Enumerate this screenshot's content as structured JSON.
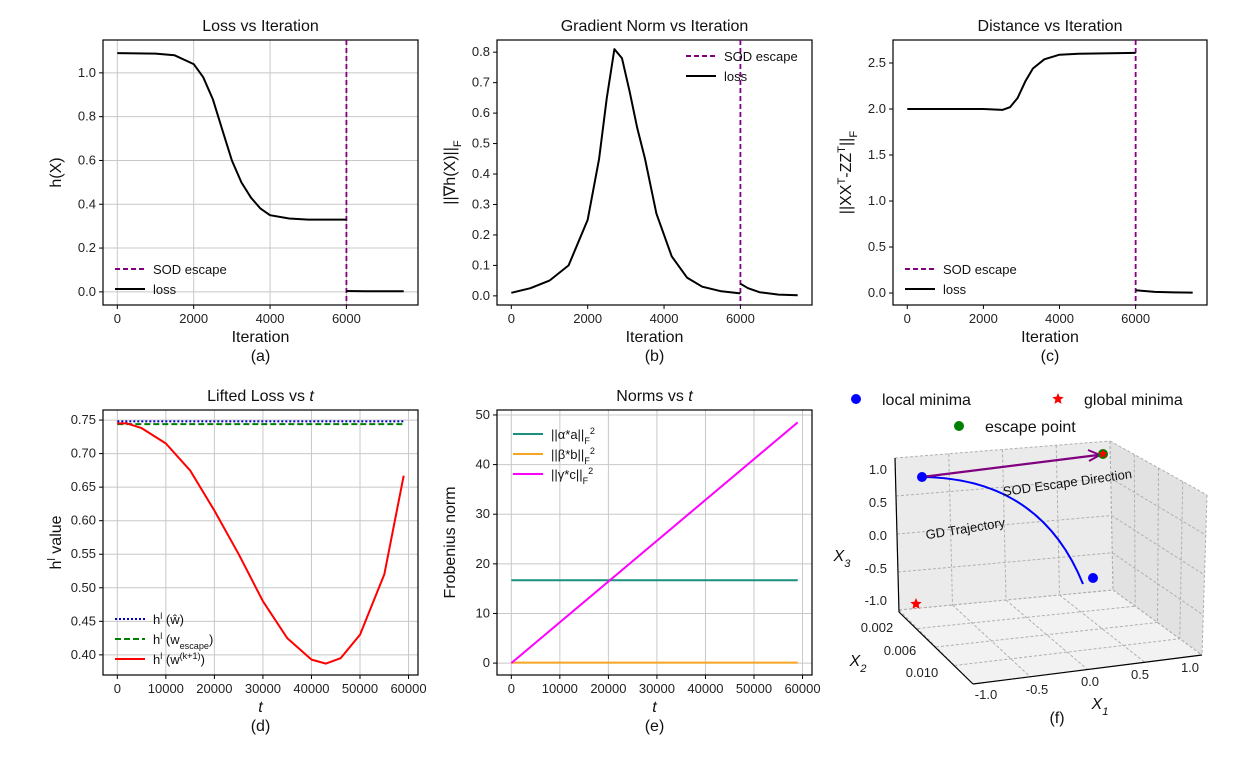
{
  "chart_data": [
    {
      "id": "a",
      "type": "line",
      "title": "Loss vs Iteration",
      "xlabel": "Iteration",
      "ylabel": [
        [
          "h(",
          ""
        ],
        [
          "X",
          ""
        ],
        [
          ")",
          ""
        ]
      ],
      "sublabel": "(a)",
      "xlim": [
        -375,
        7875
      ],
      "ylim": [
        -0.06,
        1.15
      ],
      "xticks": [
        0,
        2000,
        4000,
        6000
      ],
      "yticks": [
        0.0,
        0.2,
        0.4,
        0.6,
        0.8,
        1.0
      ],
      "ytick_fmt": 1,
      "grid": true,
      "legend": "lower-left",
      "vline": {
        "x": 6000,
        "color": "#800080",
        "label": "SOD escape"
      },
      "series": [
        {
          "name": "loss",
          "color": "#000000",
          "segments": [
            {
              "x": [
                0,
                1000,
                1500,
                2000,
                2250,
                2500,
                2750,
                3000,
                3250,
                3500,
                3750,
                4000,
                4500,
                5000,
                6000
              ],
              "y": [
                1.09,
                1.088,
                1.08,
                1.04,
                0.98,
                0.88,
                0.74,
                0.6,
                0.5,
                0.43,
                0.38,
                0.35,
                0.335,
                0.33,
                0.33
              ]
            },
            {
              "x": [
                6000,
                6500,
                7000,
                7500
              ],
              "y": [
                0.004,
                0.003,
                0.003,
                0.003
              ]
            }
          ]
        }
      ]
    },
    {
      "id": "b",
      "type": "line",
      "title": "Gradient Norm vs Iteration",
      "xlabel": "Iteration",
      "ylabel": [
        [
          "||∇h(X)||",
          ""
        ],
        [
          "F",
          "sub"
        ]
      ],
      "sublabel": "(b)",
      "xlim": [
        -375,
        7875
      ],
      "ylim": [
        -0.03,
        0.84
      ],
      "xticks": [
        0,
        2000,
        4000,
        6000
      ],
      "yticks": [
        0.0,
        0.1,
        0.2,
        0.3,
        0.4,
        0.5,
        0.6,
        0.7,
        0.8
      ],
      "ytick_fmt": 1,
      "grid": false,
      "legend": "upper-right",
      "vline": {
        "x": 6000,
        "color": "#800080",
        "label": "SOD escape"
      },
      "series": [
        {
          "name": "loss",
          "color": "#000000",
          "segments": [
            {
              "x": [
                0,
                500,
                1000,
                1500,
                2000,
                2300,
                2500,
                2700,
                2900,
                3100,
                3300,
                3500,
                3800,
                4200,
                4600,
                5000,
                5500,
                6000
              ],
              "y": [
                0.01,
                0.025,
                0.05,
                0.1,
                0.25,
                0.45,
                0.65,
                0.81,
                0.78,
                0.67,
                0.55,
                0.45,
                0.27,
                0.13,
                0.06,
                0.03,
                0.015,
                0.008
              ]
            },
            {
              "x": [
                6000,
                6200,
                6500,
                7000,
                7500
              ],
              "y": [
                0.04,
                0.025,
                0.012,
                0.004,
                0.002
              ]
            }
          ]
        }
      ]
    },
    {
      "id": "c",
      "type": "line",
      "title": "Distance vs Iteration",
      "xlabel": "Iteration",
      "ylabel": [
        [
          "||XX",
          ""
        ],
        [
          "T",
          "sup"
        ],
        [
          "-ZZ",
          ""
        ],
        [
          "T",
          "sup"
        ],
        [
          "||",
          ""
        ],
        [
          "F",
          "sub"
        ]
      ],
      "sublabel": "(c)",
      "xlim": [
        -375,
        7875
      ],
      "ylim": [
        -0.13,
        2.75
      ],
      "xticks": [
        0,
        2000,
        4000,
        6000
      ],
      "yticks": [
        0.0,
        0.5,
        1.0,
        1.5,
        2.0,
        2.5
      ],
      "ytick_fmt": 1,
      "grid": false,
      "legend": "lower-left",
      "vline": {
        "x": 6000,
        "color": "#800080",
        "label": "SOD escape"
      },
      "series": [
        {
          "name": "loss",
          "color": "#000000",
          "segments": [
            {
              "x": [
                0,
                1000,
                2000,
                2500,
                2700,
                2900,
                3100,
                3300,
                3600,
                4000,
                4500,
                6000
              ],
              "y": [
                2.0,
                2.0,
                2.0,
                1.99,
                2.02,
                2.12,
                2.3,
                2.44,
                2.54,
                2.59,
                2.6,
                2.61
              ]
            },
            {
              "x": [
                6000,
                6500,
                7000,
                7500
              ],
              "y": [
                0.03,
                0.012,
                0.007,
                0.005
              ]
            }
          ]
        }
      ]
    },
    {
      "id": "d",
      "type": "line",
      "title": [
        [
          "Lifted Loss vs ",
          ""
        ],
        [
          "t",
          "it"
        ]
      ],
      "xlabel": "t",
      "ylabel": [
        [
          "h",
          ""
        ],
        [
          "l",
          "sup"
        ],
        [
          " value",
          ""
        ]
      ],
      "sublabel": "(d)",
      "xlim": [
        -2950,
        61950
      ],
      "ylim": [
        0.37,
        0.765
      ],
      "xticks": [
        0,
        10000,
        20000,
        30000,
        40000,
        50000,
        60000
      ],
      "yticks": [
        0.4,
        0.45,
        0.5,
        0.55,
        0.6,
        0.65,
        0.7,
        0.75
      ],
      "ytick_fmt": 2,
      "grid": true,
      "legend": "lower-left",
      "series": [
        {
          "name": [
            [
              "h",
              ""
            ],
            [
              "l",
              "sup"
            ],
            [
              " (ŵ)",
              ""
            ]
          ],
          "color": "#0000cc",
          "dash": "2,2",
          "segments": [
            {
              "x": [
                0,
                59000
              ],
              "y": [
                0.748,
                0.748
              ]
            }
          ]
        },
        {
          "name": [
            [
              "h",
              ""
            ],
            [
              "l",
              "sup"
            ],
            [
              " (w",
              ""
            ],
            [
              "escape",
              "sub"
            ],
            [
              ")",
              ""
            ]
          ],
          "color": "#008000",
          "dash": "6,3",
          "segments": [
            {
              "x": [
                0,
                59000
              ],
              "y": [
                0.744,
                0.744
              ]
            }
          ]
        },
        {
          "name": [
            [
              "h",
              ""
            ],
            [
              "l",
              "sup"
            ],
            [
              " (w",
              ""
            ],
            [
              "(k+1)",
              "sup"
            ],
            [
              ")",
              ""
            ]
          ],
          "color": "#ff0000",
          "segments": [
            {
              "x": [
                0,
                2000,
                5000,
                10000,
                15000,
                20000,
                25000,
                30000,
                35000,
                40000,
                43000,
                46000,
                50000,
                55000,
                59000
              ],
              "y": [
                0.745,
                0.745,
                0.738,
                0.715,
                0.675,
                0.615,
                0.55,
                0.48,
                0.425,
                0.393,
                0.387,
                0.395,
                0.43,
                0.52,
                0.667
              ]
            }
          ]
        }
      ]
    },
    {
      "id": "e",
      "type": "line",
      "title": [
        [
          "Norms vs ",
          ""
        ],
        [
          "t",
          "it"
        ]
      ],
      "xlabel": "t",
      "ylabel": [
        [
          "Frobenius norm",
          ""
        ]
      ],
      "sublabel": "(e)",
      "xlim": [
        -2950,
        61950
      ],
      "ylim": [
        -2.4,
        51
      ],
      "xticks": [
        0,
        10000,
        20000,
        30000,
        40000,
        50000,
        60000
      ],
      "yticks": [
        0,
        10,
        20,
        30,
        40,
        50
      ],
      "ytick_fmt": 0,
      "grid": true,
      "legend": "upper-left",
      "series": [
        {
          "name": [
            [
              "||α*a||",
              ""
            ],
            [
              "F",
              "sub"
            ],
            [
              "2",
              "sup"
            ]
          ],
          "color": "#1a9080",
          "segments": [
            {
              "x": [
                0,
                59000
              ],
              "y": [
                16.7,
                16.7
              ]
            }
          ]
        },
        {
          "name": [
            [
              "||β*b||",
              ""
            ],
            [
              "F",
              "sub"
            ],
            [
              "2",
              "sup"
            ]
          ],
          "color": "#f5a623",
          "segments": [
            {
              "x": [
                0,
                59000
              ],
              "y": [
                0.1,
                0.1
              ]
            }
          ]
        },
        {
          "name": [
            [
              "||γ*c||",
              ""
            ],
            [
              "F",
              "sub"
            ],
            [
              "2",
              "sup"
            ]
          ],
          "color": "#ff00ff",
          "segments": [
            {
              "x": [
                0,
                59000
              ],
              "y": [
                0,
                48.5
              ]
            }
          ]
        }
      ]
    },
    {
      "id": "f",
      "type": "scatter3d",
      "sublabel": "(f)",
      "legend": [
        {
          "label": "local minima",
          "color": "#0000ff",
          "marker": "circle"
        },
        {
          "label": "global minima",
          "color": "#ff0000",
          "marker": "star"
        },
        {
          "label": "escape point",
          "color": "#008000",
          "marker": "circle"
        }
      ],
      "annotations": [
        "SOD Escape Direction",
        "GD Trajectory"
      ],
      "x1_ticks": [
        "-1.0",
        "-0.5",
        "0.0",
        "0.5",
        "1.0"
      ],
      "x2_ticks": [
        "0.002",
        "0.006",
        "0.010"
      ],
      "x3_ticks": [
        "1.0",
        "0.5",
        "0.0",
        "-0.5",
        "-1.0"
      ],
      "x1_label": "X1",
      "x2_label": "X2",
      "x3_label": "X3",
      "colors": {
        "trajectory": "#0000ff",
        "escape_arrow": "#800080"
      }
    }
  ]
}
